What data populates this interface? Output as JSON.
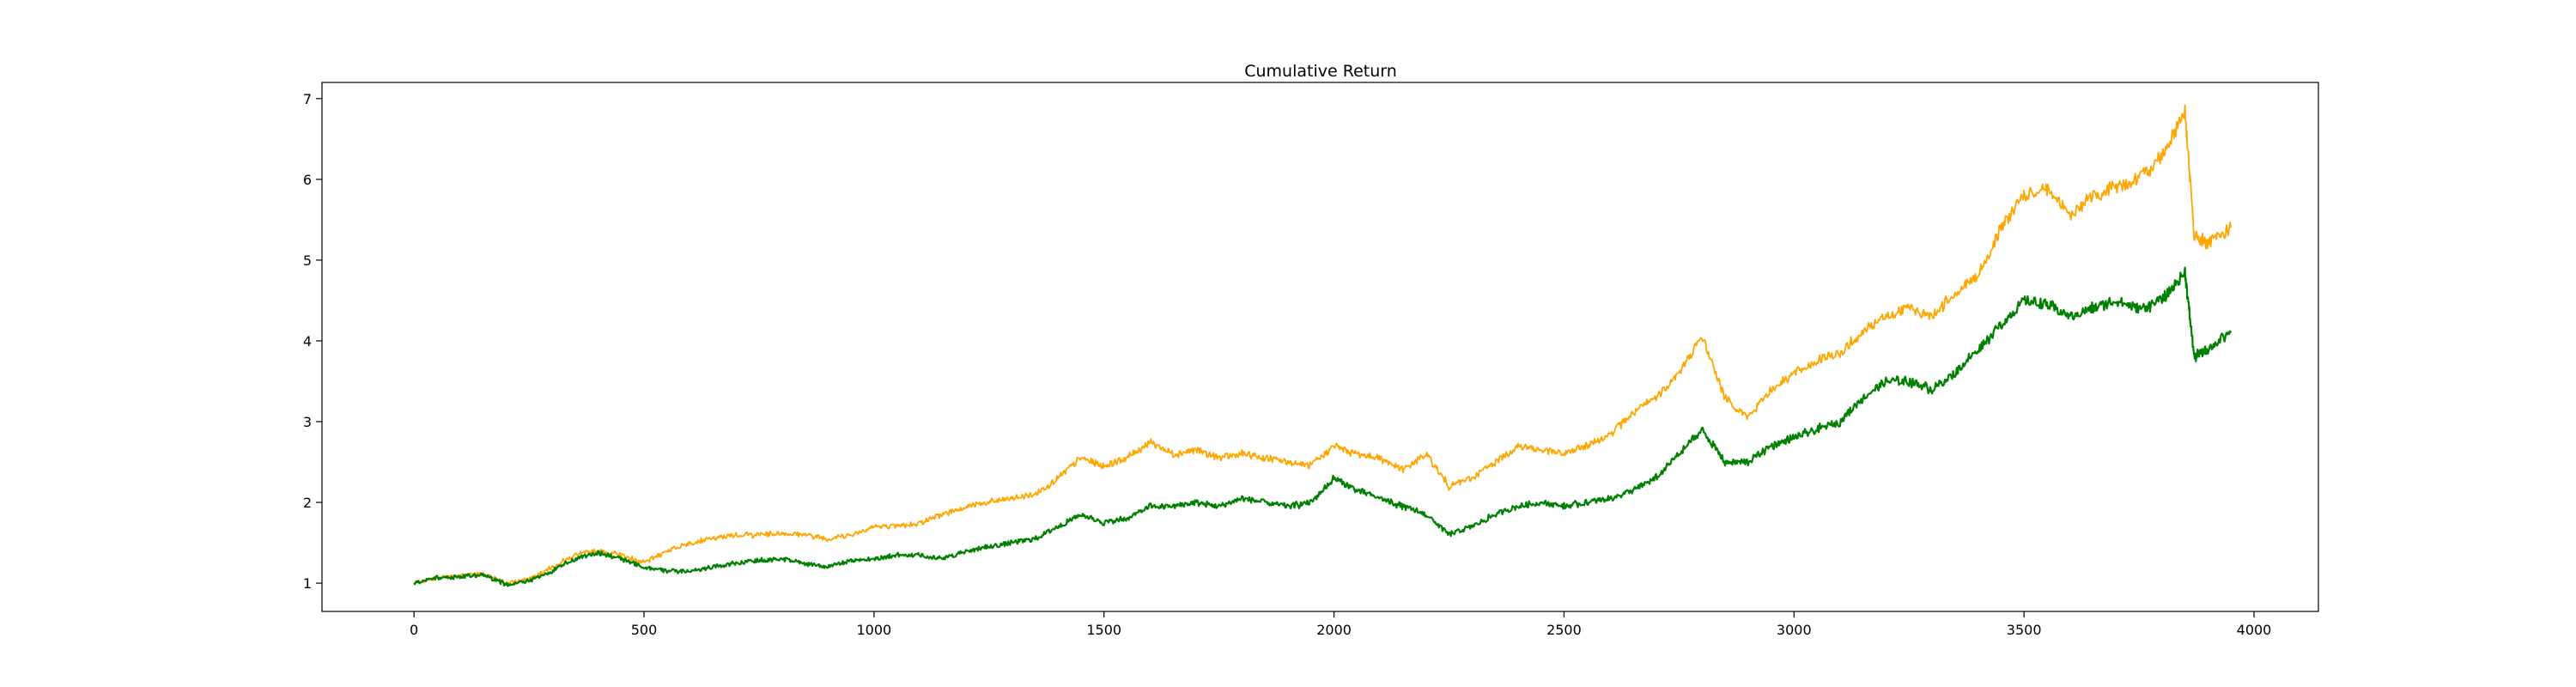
{
  "chart_data": {
    "type": "line",
    "title": "Cumulative Return",
    "xlabel": "",
    "ylabel": "",
    "xlim": [
      -200,
      4140
    ],
    "ylim": [
      0.65,
      7.2
    ],
    "xticks": [
      0,
      500,
      1000,
      1500,
      2000,
      2500,
      3000,
      3500,
      4000
    ],
    "yticks": [
      1,
      2,
      3,
      4,
      5,
      6,
      7
    ],
    "grid": false,
    "legend": "none",
    "series": [
      {
        "color": "#ffa500",
        "x": [
          0,
          50,
          100,
          150,
          200,
          250,
          300,
          350,
          400,
          450,
          500,
          550,
          600,
          650,
          700,
          750,
          800,
          850,
          900,
          950,
          1000,
          1050,
          1100,
          1150,
          1200,
          1250,
          1300,
          1350,
          1400,
          1450,
          1500,
          1550,
          1600,
          1650,
          1700,
          1750,
          1800,
          1850,
          1900,
          1950,
          2000,
          2050,
          2100,
          2150,
          2200,
          2250,
          2300,
          2350,
          2400,
          2450,
          2500,
          2550,
          2600,
          2650,
          2700,
          2750,
          2800,
          2850,
          2900,
          2950,
          3000,
          3050,
          3100,
          3150,
          3200,
          3250,
          3300,
          3350,
          3400,
          3450,
          3500,
          3550,
          3600,
          3650,
          3700,
          3750,
          3800,
          3850,
          3870,
          3900,
          3950
        ],
        "values": [
          1.0,
          1.07,
          1.1,
          1.12,
          1.0,
          1.05,
          1.2,
          1.35,
          1.4,
          1.35,
          1.25,
          1.4,
          1.5,
          1.55,
          1.6,
          1.6,
          1.62,
          1.6,
          1.55,
          1.6,
          1.7,
          1.7,
          1.75,
          1.85,
          1.95,
          2.0,
          2.05,
          2.1,
          2.3,
          2.55,
          2.45,
          2.55,
          2.75,
          2.6,
          2.65,
          2.55,
          2.6,
          2.55,
          2.5,
          2.45,
          2.7,
          2.6,
          2.55,
          2.4,
          2.6,
          2.2,
          2.3,
          2.5,
          2.7,
          2.65,
          2.6,
          2.7,
          2.85,
          3.1,
          3.3,
          3.6,
          4.05,
          3.3,
          3.05,
          3.4,
          3.6,
          3.75,
          3.85,
          4.1,
          4.3,
          4.4,
          4.3,
          4.6,
          4.8,
          5.4,
          5.8,
          5.9,
          5.55,
          5.8,
          5.9,
          6.0,
          6.3,
          6.85,
          5.3,
          5.2,
          5.4
        ]
      },
      {
        "color": "#008000",
        "x": [
          0,
          50,
          100,
          150,
          200,
          250,
          300,
          350,
          400,
          450,
          500,
          550,
          600,
          650,
          700,
          750,
          800,
          850,
          900,
          950,
          1000,
          1050,
          1100,
          1150,
          1200,
          1250,
          1300,
          1350,
          1400,
          1450,
          1500,
          1550,
          1600,
          1650,
          1700,
          1750,
          1800,
          1850,
          1900,
          1950,
          2000,
          2050,
          2100,
          2150,
          2200,
          2250,
          2300,
          2350,
          2400,
          2450,
          2500,
          2550,
          2600,
          2650,
          2700,
          2750,
          2800,
          2850,
          2900,
          2950,
          3000,
          3050,
          3100,
          3150,
          3200,
          3250,
          3300,
          3350,
          3400,
          3450,
          3500,
          3550,
          3600,
          3650,
          3700,
          3750,
          3800,
          3850,
          3870,
          3900,
          3950
        ],
        "values": [
          1.0,
          1.06,
          1.08,
          1.1,
          0.98,
          1.03,
          1.15,
          1.3,
          1.38,
          1.3,
          1.2,
          1.15,
          1.15,
          1.2,
          1.25,
          1.28,
          1.3,
          1.25,
          1.2,
          1.28,
          1.3,
          1.35,
          1.35,
          1.3,
          1.4,
          1.45,
          1.5,
          1.55,
          1.7,
          1.85,
          1.75,
          1.8,
          1.95,
          1.95,
          2.0,
          1.95,
          2.05,
          2.0,
          1.95,
          2.0,
          2.3,
          2.15,
          2.05,
          1.95,
          1.85,
          1.6,
          1.7,
          1.85,
          1.95,
          2.0,
          1.95,
          2.0,
          2.05,
          2.15,
          2.3,
          2.6,
          2.9,
          2.5,
          2.5,
          2.7,
          2.8,
          2.9,
          3.0,
          3.3,
          3.5,
          3.5,
          3.4,
          3.6,
          3.9,
          4.2,
          4.5,
          4.45,
          4.3,
          4.4,
          4.5,
          4.4,
          4.5,
          4.85,
          3.8,
          3.9,
          4.1
        ]
      }
    ]
  }
}
